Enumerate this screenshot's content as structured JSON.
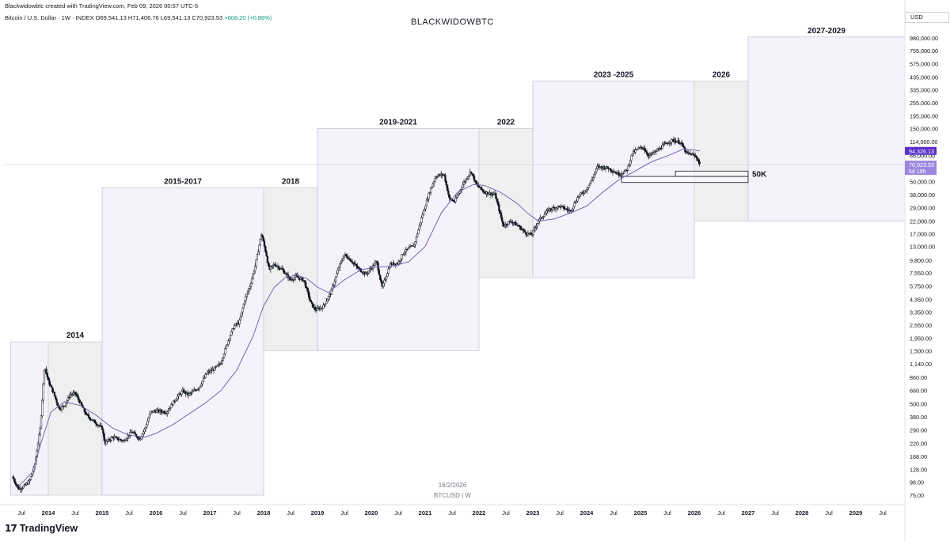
{
  "header": {
    "caption": "Blackwidowbtc created with TradingView.com, Feb 09, 2026 00:57 UTC-5",
    "legend": "Bitcoin / U.S. Dollar · 1W · INDEX  O69,541.13  H71,406.76  L69,541.13  C70,923.53",
    "change": "+608.20 (+0.86%)",
    "watermark": "BLACKWIDOWBTC",
    "currency": "USD"
  },
  "footer": {
    "brand": "TradingView",
    "logo_glyph": "17",
    "date": "16/2/2026",
    "symbol": "BTCUSD | W"
  },
  "chart_data": {
    "type": "candlestick",
    "symbol": "BTCUSD",
    "interval": "1W",
    "yscale": "log",
    "ylim": [
      75,
      1000000
    ],
    "xlim": [
      2013.3,
      2030.0
    ],
    "grid": false,
    "y_ticks": [
      980000,
      755000,
      575000,
      435000,
      335000,
      255000,
      195000,
      150000,
      114000,
      86000,
      50000,
      38000,
      29000,
      22000,
      17000,
      13000,
      9800,
      7550,
      5750,
      4350,
      3350,
      2550,
      1950,
      1500,
      1140,
      860,
      660,
      500,
      380,
      290,
      220,
      168,
      128,
      98,
      75
    ],
    "y_tick_labels": [
      "980,000.00",
      "755,000.00",
      "575,000.00",
      "435,000.00",
      "335,000.00",
      "255,000.00",
      "195,000.00",
      "150,000.00",
      "114,000.00",
      "86,000.00",
      "50,000.00",
      "38,000.00",
      "29,000.00",
      "22,000.00",
      "17,000.00",
      "13,000.00",
      "9,800.00",
      "7,550.00",
      "5,750.00",
      "4,350.00",
      "3,350.00",
      "2,550.00",
      "1,950.00",
      "1,500.00",
      "1,140.00",
      "860.00",
      "660.00",
      "500.00",
      "380.00",
      "290.00",
      "220.00",
      "168.00",
      "128.00",
      "98.00",
      "75.00"
    ],
    "x_ticks": [
      {
        "t": 2013.5,
        "label": "Jul"
      },
      {
        "t": 2014.0,
        "label": "2014"
      },
      {
        "t": 2014.5,
        "label": "Jul"
      },
      {
        "t": 2015.0,
        "label": "2015"
      },
      {
        "t": 2015.5,
        "label": "Jul"
      },
      {
        "t": 2016.0,
        "label": "2016"
      },
      {
        "t": 2016.5,
        "label": "Jul"
      },
      {
        "t": 2017.0,
        "label": "2017"
      },
      {
        "t": 2017.5,
        "label": "Jul"
      },
      {
        "t": 2018.0,
        "label": "2018"
      },
      {
        "t": 2018.5,
        "label": "Jul"
      },
      {
        "t": 2019.0,
        "label": "2019"
      },
      {
        "t": 2019.5,
        "label": "Jul"
      },
      {
        "t": 2020.0,
        "label": "2020"
      },
      {
        "t": 2020.5,
        "label": "Jul"
      },
      {
        "t": 2021.0,
        "label": "2021"
      },
      {
        "t": 2021.5,
        "label": "Jul"
      },
      {
        "t": 2022.0,
        "label": "2022"
      },
      {
        "t": 2022.5,
        "label": "Jul"
      },
      {
        "t": 2023.0,
        "label": "2023"
      },
      {
        "t": 2023.5,
        "label": "Jul"
      },
      {
        "t": 2024.0,
        "label": "2024"
      },
      {
        "t": 2024.5,
        "label": "Jul"
      },
      {
        "t": 2025.0,
        "label": "2025"
      },
      {
        "t": 2025.5,
        "label": "Jul"
      },
      {
        "t": 2026.0,
        "label": "2026"
      },
      {
        "t": 2026.5,
        "label": "Jul"
      },
      {
        "t": 2027.0,
        "label": "2027"
      },
      {
        "t": 2027.5,
        "label": "Jul"
      },
      {
        "t": 2028.0,
        "label": "2028"
      },
      {
        "t": 2028.5,
        "label": "Jul"
      },
      {
        "t": 2029.0,
        "label": "2029"
      },
      {
        "t": 2029.5,
        "label": "Jul"
      }
    ],
    "cycle_boxes": [
      {
        "label": "",
        "x0": 2013.3,
        "x1": 2014.0,
        "ylow": 75,
        "yhigh": 1800,
        "style": "purple"
      },
      {
        "label": "2014",
        "x0": 2014.0,
        "x1": 2015.0,
        "ylow": 75,
        "yhigh": 1800,
        "style": "gray"
      },
      {
        "label": "2015-2017",
        "x0": 2015.0,
        "x1": 2018.0,
        "ylow": 75,
        "yhigh": 44000,
        "style": "purple"
      },
      {
        "label": "2018",
        "x0": 2018.0,
        "x1": 2019.0,
        "ylow": 1500,
        "yhigh": 44000,
        "style": "gray"
      },
      {
        "label": "2019-2021",
        "x0": 2019.0,
        "x1": 2022.0,
        "ylow": 1500,
        "yhigh": 150000,
        "style": "purple"
      },
      {
        "label": "2022",
        "x0": 2022.0,
        "x1": 2023.0,
        "ylow": 6800,
        "yhigh": 150000,
        "style": "gray"
      },
      {
        "label": "2023 -2025",
        "x0": 2023.0,
        "x1": 2026.0,
        "ylow": 6800,
        "yhigh": 400000,
        "style": "purple"
      },
      {
        "label": "2026",
        "x0": 2026.0,
        "x1": 2027.0,
        "ylow": 22000,
        "yhigh": 400000,
        "style": "gray"
      },
      {
        "label": "2027-2029",
        "x0": 2027.0,
        "x1": 2030.0,
        "ylow": 22000,
        "yhigh": 1000000,
        "style": "purple"
      }
    ],
    "support_zones": [
      {
        "label": "50K",
        "x0": 2025.65,
        "x1": 2027.0,
        "ylow": 55500,
        "yhigh": 62000
      },
      {
        "label": "",
        "x0": 2024.65,
        "x1": 2027.0,
        "ylow": 49000,
        "yhigh": 55500
      }
    ],
    "horizontal_line": 70923.53,
    "price_labels": [
      {
        "value": 94326.13,
        "text": "94,326.13",
        "color": "#5b2fc9",
        "sub": ""
      },
      {
        "value": 70923.53,
        "text": "70,923.53",
        "color": "#9c87e0",
        "sub": "6d 19h"
      }
    ],
    "price_path": [
      [
        2013.33,
        110
      ],
      [
        2013.45,
        85
      ],
      [
        2013.55,
        90
      ],
      [
        2013.65,
        100
      ],
      [
        2013.75,
        140
      ],
      [
        2013.85,
        300
      ],
      [
        2013.93,
        1100
      ],
      [
        2014.0,
        800
      ],
      [
        2014.1,
        620
      ],
      [
        2014.2,
        450
      ],
      [
        2014.3,
        480
      ],
      [
        2014.4,
        600
      ],
      [
        2014.5,
        620
      ],
      [
        2014.6,
        500
      ],
      [
        2014.7,
        400
      ],
      [
        2014.8,
        360
      ],
      [
        2014.9,
        330
      ],
      [
        2015.0,
        300
      ],
      [
        2015.05,
        220
      ],
      [
        2015.2,
        250
      ],
      [
        2015.4,
        230
      ],
      [
        2015.55,
        280
      ],
      [
        2015.7,
        240
      ],
      [
        2015.8,
        300
      ],
      [
        2015.9,
        420
      ],
      [
        2016.0,
        430
      ],
      [
        2016.2,
        420
      ],
      [
        2016.4,
        580
      ],
      [
        2016.5,
        650
      ],
      [
        2016.6,
        600
      ],
      [
        2016.8,
        700
      ],
      [
        2016.95,
        950
      ],
      [
        2017.05,
        1000
      ],
      [
        2017.2,
        1150
      ],
      [
        2017.35,
        1900
      ],
      [
        2017.45,
        2500
      ],
      [
        2017.55,
        2700
      ],
      [
        2017.65,
        4300
      ],
      [
        2017.75,
        5800
      ],
      [
        2017.85,
        9000
      ],
      [
        2017.96,
        17000
      ],
      [
        2018.05,
        11000
      ],
      [
        2018.1,
        8000
      ],
      [
        2018.2,
        9000
      ],
      [
        2018.35,
        8000
      ],
      [
        2018.5,
        6500
      ],
      [
        2018.6,
        7000
      ],
      [
        2018.75,
        6400
      ],
      [
        2018.88,
        4000
      ],
      [
        2018.96,
        3500
      ],
      [
        2019.1,
        3700
      ],
      [
        2019.25,
        5000
      ],
      [
        2019.4,
        8500
      ],
      [
        2019.5,
        11000
      ],
      [
        2019.6,
        10000
      ],
      [
        2019.75,
        8300
      ],
      [
        2019.9,
        7300
      ],
      [
        2020.1,
        9500
      ],
      [
        2020.2,
        5500
      ],
      [
        2020.35,
        9000
      ],
      [
        2020.5,
        9200
      ],
      [
        2020.6,
        11500
      ],
      [
        2020.8,
        13500
      ],
      [
        2020.95,
        25000
      ],
      [
        2021.08,
        40000
      ],
      [
        2021.2,
        56000
      ],
      [
        2021.35,
        58000
      ],
      [
        2021.45,
        35000
      ],
      [
        2021.55,
        33000
      ],
      [
        2021.7,
        47000
      ],
      [
        2021.85,
        62000
      ],
      [
        2021.95,
        47000
      ],
      [
        2022.1,
        40000
      ],
      [
        2022.3,
        38000
      ],
      [
        2022.45,
        20000
      ],
      [
        2022.6,
        22000
      ],
      [
        2022.75,
        19500
      ],
      [
        2022.88,
        17000
      ],
      [
        2022.98,
        16600
      ],
      [
        2023.1,
        22000
      ],
      [
        2023.3,
        28000
      ],
      [
        2023.5,
        30000
      ],
      [
        2023.7,
        27000
      ],
      [
        2023.85,
        37000
      ],
      [
        2023.99,
        42000
      ],
      [
        2024.1,
        52000
      ],
      [
        2024.2,
        68000
      ],
      [
        2024.4,
        66000
      ],
      [
        2024.6,
        58000
      ],
      [
        2024.75,
        63000
      ],
      [
        2024.85,
        90000
      ],
      [
        2024.95,
        98000
      ],
      [
        2025.05,
        102000
      ],
      [
        2025.15,
        85000
      ],
      [
        2025.3,
        94000
      ],
      [
        2025.45,
        108000
      ],
      [
        2025.6,
        118000
      ],
      [
        2025.75,
        112000
      ],
      [
        2025.85,
        90000
      ],
      [
        2025.95,
        88000
      ],
      [
        2026.05,
        82000
      ],
      [
        2026.1,
        70923
      ]
    ],
    "ma_path": [
      [
        2013.45,
        90
      ],
      [
        2013.7,
        120
      ],
      [
        2013.9,
        250
      ],
      [
        2014.05,
        420
      ],
      [
        2014.3,
        520
      ],
      [
        2014.6,
        480
      ],
      [
        2014.9,
        390
      ],
      [
        2015.2,
        300
      ],
      [
        2015.5,
        260
      ],
      [
        2015.8,
        250
      ],
      [
        2016.0,
        270
      ],
      [
        2016.3,
        320
      ],
      [
        2016.6,
        400
      ],
      [
        2016.9,
        500
      ],
      [
        2017.2,
        650
      ],
      [
        2017.5,
        1000
      ],
      [
        2017.8,
        2000
      ],
      [
        2018.0,
        3800
      ],
      [
        2018.2,
        5600
      ],
      [
        2018.4,
        6800
      ],
      [
        2018.6,
        7200
      ],
      [
        2018.8,
        6700
      ],
      [
        2019.0,
        5600
      ],
      [
        2019.2,
        5000
      ],
      [
        2019.5,
        6500
      ],
      [
        2019.8,
        8000
      ],
      [
        2020.1,
        8500
      ],
      [
        2020.4,
        8600
      ],
      [
        2020.7,
        9500
      ],
      [
        2021.0,
        13000
      ],
      [
        2021.3,
        26000
      ],
      [
        2021.6,
        40000
      ],
      [
        2021.9,
        47000
      ],
      [
        2022.1,
        46000
      ],
      [
        2022.4,
        40000
      ],
      [
        2022.7,
        32000
      ],
      [
        2022.9,
        26000
      ],
      [
        2023.1,
        22000
      ],
      [
        2023.4,
        23000
      ],
      [
        2023.7,
        26000
      ],
      [
        2024.0,
        30000
      ],
      [
        2024.3,
        40000
      ],
      [
        2024.6,
        52000
      ],
      [
        2024.9,
        62000
      ],
      [
        2025.2,
        75000
      ],
      [
        2025.5,
        85000
      ],
      [
        2025.8,
        98000
      ],
      [
        2026.0,
        96000
      ],
      [
        2026.1,
        94326
      ]
    ]
  }
}
